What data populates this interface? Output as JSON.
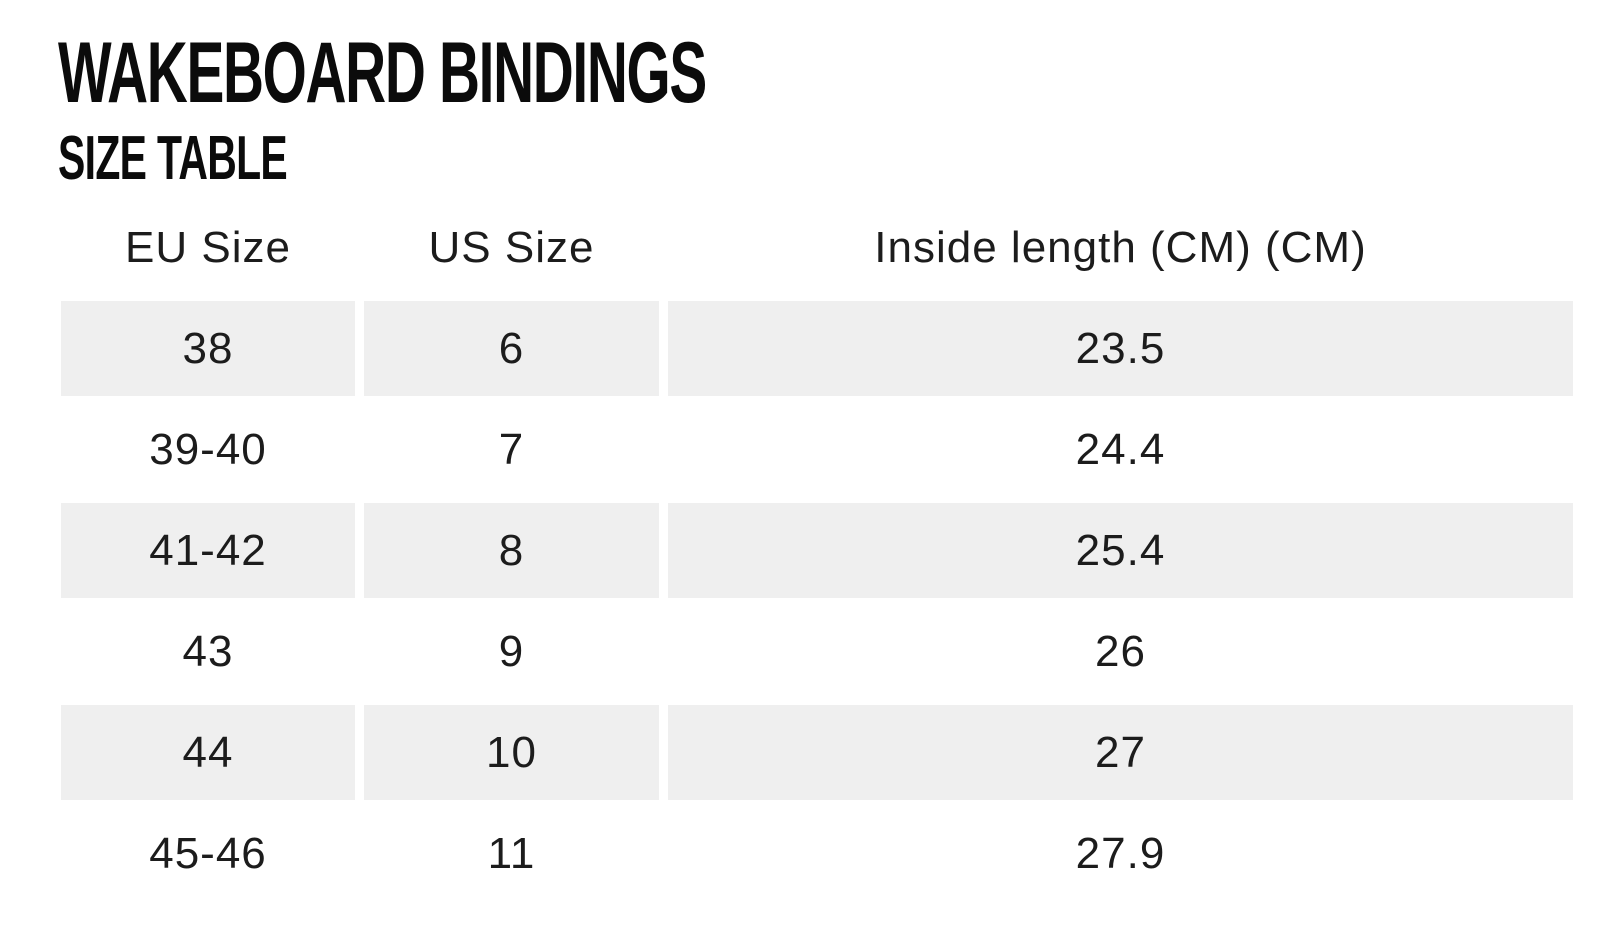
{
  "page": {
    "title": "WAKEBOARD BINDINGS",
    "subtitle": "SIZE TABLE"
  },
  "table": {
    "columns": [
      "EU Size",
      "US Size",
      "Inside length (CM) (CM)"
    ],
    "rows": [
      [
        "38",
        "6",
        "23.5"
      ],
      [
        "39-40",
        "7",
        "24.4"
      ],
      [
        "41-42",
        "8",
        "25.4"
      ],
      [
        "43",
        "9",
        "26"
      ],
      [
        "44",
        "10",
        "27"
      ],
      [
        "45-46",
        "11",
        "27.9"
      ]
    ],
    "colors": {
      "stripe_background": "#efefef",
      "text": "#1c1c1c",
      "title_text": "#0b0b0b",
      "page_background": "#ffffff"
    }
  }
}
